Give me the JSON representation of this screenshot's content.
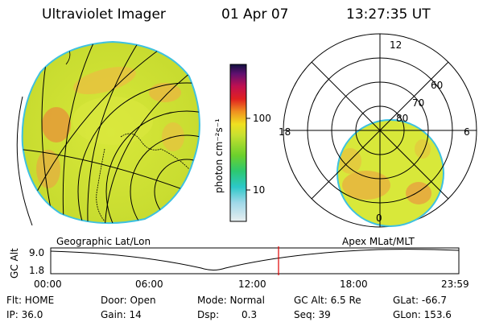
{
  "header": {
    "title": "Ultraviolet Imager",
    "date": "01 Apr 07",
    "time": "13:27:35 UT"
  },
  "colorbar": {
    "label": "photon cm⁻²s⁻¹",
    "ticks": [
      "100",
      "10"
    ]
  },
  "polar": {
    "mlt_labels": [
      "12",
      "18",
      "6",
      "0"
    ],
    "lat_labels": [
      "60",
      "70",
      "80"
    ]
  },
  "timeline": {
    "left_label": "Geographic Lat/Lon",
    "right_label": "Apex MLat/MLT",
    "y_axis_label": "GC Alt",
    "y_ticks": [
      "9.0",
      "1.8"
    ],
    "x_ticks": [
      "00:00",
      "06:00",
      "12:00",
      "18:00",
      "23:59"
    ],
    "current_time": "13:27:35"
  },
  "status": {
    "flt": "Flt: HOME",
    "ip": "IP: 36.0",
    "door": "Door: Open",
    "gain": "Gain: 14",
    "mode": "Mode: Normal",
    "dsp_label": "Dsp:",
    "dsp_value": "0.3",
    "gc_alt": "GC Alt: 6.5 Re",
    "seq": "Seq: 39",
    "glat": "GLat: -66.7",
    "glon": "GLon: 153.6"
  },
  "colors": {
    "accent_marker": "#e00000",
    "aurora_base": "#d8ec40",
    "aurora_hot": "#e89a30",
    "limb": "#3ec1e0"
  }
}
